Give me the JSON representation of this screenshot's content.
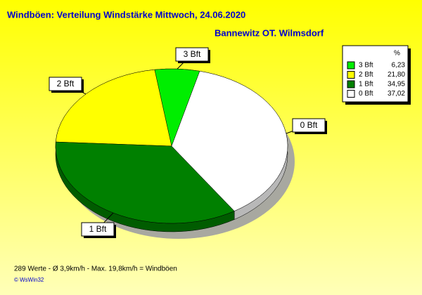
{
  "chart_data": {
    "type": "pie",
    "title": "Windböen: Verteilung Windstärke  Mittwoch, 24.06.2020",
    "subtitle": "Bannewitz OT. Wilmsdorf",
    "legend_header": "%",
    "categories": [
      "3 Bft",
      "2 Bft",
      "1 Bft",
      "0 Bft"
    ],
    "values": [
      6.23,
      21.8,
      34.95,
      37.02
    ],
    "value_labels": [
      "6,23",
      "21,80",
      "34,95",
      "37,02"
    ],
    "colors": [
      "#00ee00",
      "#ffff00",
      "#008000",
      "#ffffff"
    ],
    "legend": "top-right",
    "footer": "289 Werte   -   Ø 3,9km/h  -  Max. 19,8km/h = Windböen",
    "credit": "© WsWin32"
  }
}
